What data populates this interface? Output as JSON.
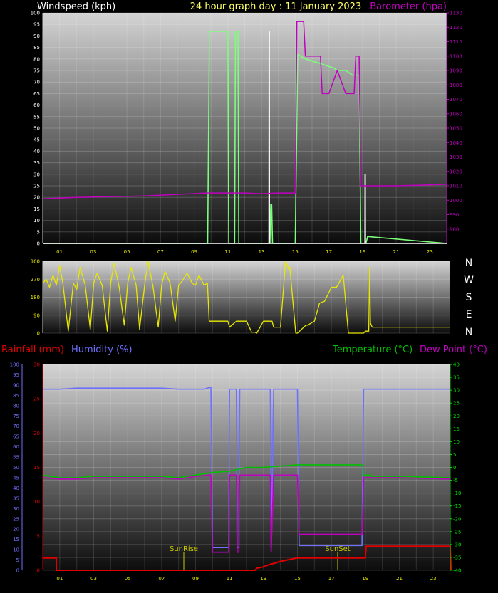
{
  "colors": {
    "wind": "#7aff7a",
    "gust": "#ffffff",
    "baro": "#c000c0",
    "dir": "#e8e800",
    "rain": "#e00000",
    "hum": "#7070ff",
    "temp": "#00c000",
    "dew": "#c000c0",
    "title": "#ffff66",
    "tick_white": "#ffffff",
    "tick_yellow": "#e8e800",
    "tick_green": "#00e000",
    "tick_blue": "#7070ff",
    "tick_red": "#e00000"
  },
  "labels": {
    "windspeed": "Windspeed (kph)",
    "title": "24 hour graph day : 11 January 2023",
    "barometer": "Barometer (hpa)",
    "rainfall": "Rainfall (mm)",
    "humidity": "Humidity (%)",
    "temperature": "Temperature (°C)",
    "dewpoint": "Dew Point (°C)",
    "sunrise": "SunRise",
    "sunset": "SunSet"
  },
  "compass": [
    "N",
    "W",
    "S",
    "E",
    "N"
  ],
  "x_ticks": [
    "01",
    "03",
    "05",
    "07",
    "09",
    "11",
    "13",
    "15",
    "17",
    "19",
    "21",
    "23"
  ],
  "chart_data": [
    {
      "type": "line",
      "title": "24 hour graph day : 11 January 2023",
      "xlim": [
        0,
        24
      ],
      "y_left": {
        "label": "Windspeed (kph)",
        "range": [
          0,
          100
        ],
        "ticks": [
          "0",
          "5",
          "10",
          "15",
          "20",
          "25",
          "30",
          "35",
          "40",
          "45",
          "50",
          "55",
          "60",
          "65",
          "70",
          "75",
          "80",
          "85",
          "90",
          "95",
          "100"
        ]
      },
      "y_right": {
        "label": "Barometer (hpa)",
        "range": [
          970,
          1130
        ],
        "ticks": [
          "980",
          "990",
          "1000",
          "1010",
          "1020",
          "1030",
          "1040",
          "1050",
          "1060",
          "1070",
          "1080",
          "1090",
          "1100",
          "1110",
          "1120",
          "1130"
        ]
      },
      "series": [
        {
          "name": "Windspeed (kph)",
          "axis": "left",
          "key": "wind",
          "x": [
            0,
            9.8,
            9.9,
            11.0,
            11.05,
            11.4,
            11.45,
            11.6,
            11.65,
            13.5,
            13.55,
            13.6,
            13.65,
            15.0,
            15.15,
            15.6,
            16.5,
            17.3,
            17.5,
            18.0,
            18.4,
            18.8,
            18.9,
            19.2,
            19.3,
            24
          ],
          "y": [
            0,
            0,
            92,
            92,
            0,
            0,
            92,
            92,
            0,
            0,
            17,
            17,
            0,
            0,
            82,
            80,
            78,
            76,
            75,
            75,
            73,
            73,
            0,
            0,
            3,
            0
          ]
        },
        {
          "name": "Gust",
          "axis": "left",
          "key": "gust",
          "x": [
            0,
            13.44,
            13.45,
            13.46,
            13.47,
            19.14,
            19.15,
            19.16,
            19.17,
            24
          ],
          "y": [
            0,
            0,
            92,
            92,
            0,
            0,
            30,
            30,
            0,
            0
          ]
        },
        {
          "name": "Barometer (hpa)",
          "axis": "right",
          "key": "baro",
          "x": [
            0,
            2,
            4,
            6,
            8,
            9.8,
            11.0,
            12.0,
            13.0,
            14.0,
            15.0,
            15.1,
            15.5,
            15.6,
            16.5,
            16.6,
            17.0,
            17.5,
            18.0,
            18.5,
            18.6,
            18.8,
            18.9,
            19.0,
            21,
            24
          ],
          "y": [
            1001,
            1002,
            1002.5,
            1003,
            1004,
            1005,
            1005,
            1005,
            1004.5,
            1005,
            1005,
            1124,
            1124,
            1100,
            1100,
            1074,
            1074,
            1090,
            1074,
            1074,
            1100,
            1100,
            1010,
            1010,
            1010,
            1011
          ]
        }
      ]
    },
    {
      "type": "line",
      "y": {
        "range": [
          0,
          360
        ],
        "ticks": [
          "0",
          "90",
          "180",
          "270",
          "360"
        ]
      },
      "xlim": [
        0,
        24
      ],
      "series": [
        {
          "name": "Wind direction",
          "key": "dir",
          "x": [
            0,
            0.2,
            0.4,
            0.6,
            0.8,
            1.0,
            1.2,
            1.5,
            1.8,
            2.0,
            2.2,
            2.5,
            2.8,
            3.0,
            3.2,
            3.5,
            3.8,
            4.0,
            4.2,
            4.5,
            4.8,
            5.0,
            5.2,
            5.5,
            5.7,
            6.0,
            6.2,
            6.5,
            6.8,
            7.0,
            7.2,
            7.5,
            7.8,
            8.0,
            8.2,
            8.5,
            8.8,
            9.0,
            9.2,
            9.5,
            9.7,
            9.8,
            10.9,
            11.0,
            11.4,
            12.0,
            12.3,
            12.5,
            12.6,
            13.0,
            13.5,
            13.6,
            14.0,
            14.3,
            14.5,
            14.55,
            14.9,
            15.0,
            15.5,
            15.6,
            16.0,
            16.3,
            16.6,
            17.0,
            17.3,
            17.7,
            18.0,
            18.5,
            18.9,
            19.0,
            19.2,
            19.25,
            19.3,
            19.4,
            19.6,
            24
          ],
          "y": [
            250,
            270,
            230,
            290,
            240,
            340,
            240,
            10,
            250,
            220,
            330,
            240,
            20,
            250,
            300,
            240,
            10,
            250,
            350,
            230,
            40,
            250,
            330,
            240,
            20,
            240,
            360,
            230,
            30,
            240,
            310,
            250,
            60,
            240,
            260,
            300,
            250,
            240,
            290,
            240,
            250,
            60,
            60,
            30,
            60,
            60,
            5,
            5,
            0,
            60,
            60,
            30,
            30,
            360,
            320,
            330,
            0,
            0,
            40,
            40,
            60,
            150,
            160,
            230,
            230,
            290,
            0,
            0,
            0,
            10,
            10,
            330,
            50,
            30,
            30,
            30
          ]
        }
      ]
    },
    {
      "type": "line",
      "xlim": [
        0,
        24
      ],
      "y_left_rain": {
        "label": "Rainfall (mm)",
        "range": [
          0,
          30
        ],
        "ticks": [
          "0",
          "5",
          "10",
          "15",
          "20",
          "25",
          "30"
        ]
      },
      "y_left_hum": {
        "label": "Humidity (%)",
        "range": [
          0,
          100
        ],
        "ticks": [
          "0",
          "5",
          "10",
          "15",
          "20",
          "25",
          "30",
          "35",
          "40",
          "45",
          "50",
          "55",
          "60",
          "65",
          "70",
          "75",
          "80",
          "85",
          "90",
          "95",
          "100"
        ]
      },
      "y_right": {
        "label": "Temperature (°C)",
        "range": [
          -40,
          40
        ],
        "ticks": [
          "-40",
          "-35",
          "-30",
          "-25",
          "-20",
          "-15",
          "-10",
          "-5",
          "0",
          "5",
          "10",
          "15",
          "20",
          "25",
          "30",
          "35",
          "40"
        ]
      },
      "series": [
        {
          "name": "Rainfall (mm)",
          "axis": "rain",
          "key": "rain",
          "x": [
            0,
            0.8,
            0.8,
            12.5,
            12.6,
            13.0,
            13.3,
            13.6,
            14.0,
            14.4,
            14.8,
            15.0,
            16.0,
            18.0,
            19.0,
            19.05,
            20,
            24,
            24.05
          ],
          "y": [
            1.8,
            1.8,
            0,
            0,
            0.3,
            0.5,
            0.8,
            1.0,
            1.3,
            1.5,
            1.7,
            1.8,
            1.8,
            1.8,
            1.8,
            3.5,
            3.5,
            3.5,
            0
          ]
        },
        {
          "name": "Humidity (%)",
          "axis": "hum",
          "key": "hum",
          "x": [
            0,
            0.5,
            1,
            2,
            3,
            4,
            5,
            6,
            7,
            8,
            9,
            9.5,
            9.9,
            10.0,
            10.95,
            11.0,
            11.1,
            11.4,
            11.45,
            11.55,
            11.6,
            11.9,
            12.0,
            13.4,
            13.45,
            13.6,
            13.65,
            15.0,
            15.1,
            18.8,
            18.9,
            24
          ],
          "y": [
            88,
            88,
            88,
            88.5,
            88.5,
            88.5,
            88.5,
            88.5,
            88.5,
            88,
            88,
            88,
            89,
            11,
            11,
            88,
            88,
            88,
            11,
            11,
            88,
            88,
            88,
            88,
            11,
            88,
            88,
            88,
            12,
            12,
            88,
            88
          ]
        },
        {
          "name": "Temperature (°C)",
          "axis": "right",
          "key": "temp",
          "x": [
            0,
            1,
            2,
            3,
            4,
            5,
            6,
            7,
            8,
            9,
            10,
            11,
            12,
            13,
            14,
            15,
            16,
            17,
            18,
            18.85,
            18.9,
            19.3,
            19.4,
            21,
            24
          ],
          "y": [
            -3,
            -4,
            -4,
            -3.5,
            -3.5,
            -3.5,
            -3.5,
            -3.5,
            -4,
            -3,
            -2,
            -1.5,
            0,
            0,
            0.5,
            1,
            1,
            1,
            1,
            1,
            -3,
            -3,
            -3.5,
            -3.5,
            -4
          ]
        },
        {
          "name": "Dew Point (°C)",
          "axis": "right",
          "key": "dew",
          "x": [
            0,
            1,
            2,
            3,
            4,
            5,
            6,
            7,
            8,
            9,
            9.9,
            10.0,
            10.95,
            11.0,
            11.4,
            11.45,
            11.55,
            11.6,
            11.9,
            12.0,
            13.4,
            13.45,
            13.6,
            13.65,
            15.0,
            15.1,
            18.8,
            18.9,
            19.5,
            21,
            24
          ],
          "y": [
            -4,
            -4.5,
            -4.5,
            -4,
            -4,
            -4,
            -4,
            -4,
            -4.5,
            -3.5,
            -3,
            -33,
            -33,
            -3,
            -3,
            -33,
            -33,
            -3,
            -3,
            -3,
            -3,
            -33,
            -3,
            -3,
            -3,
            -26,
            -26,
            -4,
            -4,
            -4,
            -4.5
          ]
        }
      ]
    }
  ]
}
